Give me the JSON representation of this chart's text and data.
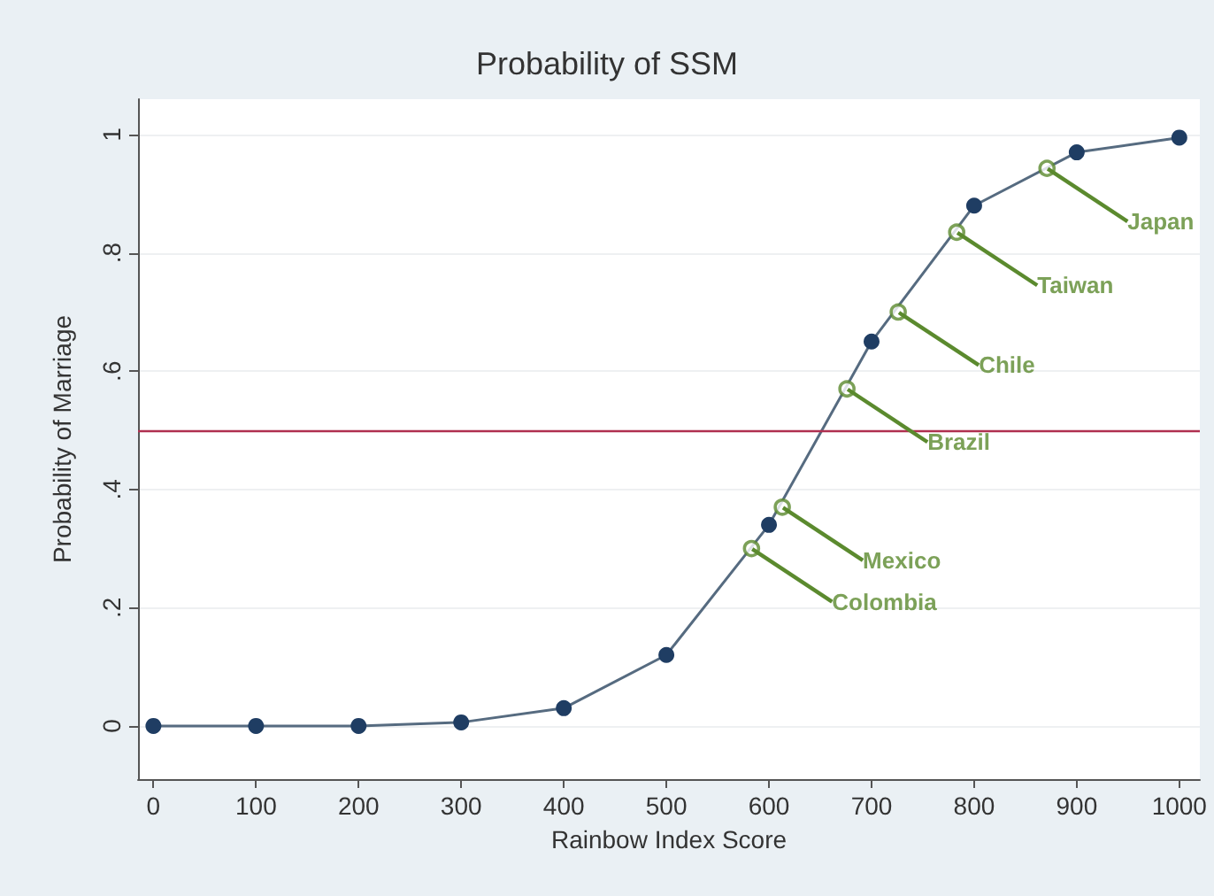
{
  "chart_data": {
    "type": "line",
    "title": "Probability of SSM",
    "xlabel": "Rainbow Index Score",
    "ylabel": "Probability of Marriage",
    "x": [
      0,
      100,
      200,
      300,
      400,
      500,
      600,
      700,
      800,
      900,
      1000
    ],
    "series": [
      {
        "color": "#1f3d63",
        "values": [
          0,
          0,
          0,
          0.006,
          0.03,
          0.12,
          0.34,
          0.65,
          0.88,
          0.97,
          0.995
        ]
      },
      {
        "type": "scatter",
        "color": "#5b8a2e",
        "x": [
          583,
          613,
          676,
          726,
          783,
          871
        ],
        "values": [
          0.3,
          0.37,
          0.57,
          0.7,
          0.835,
          0.943
        ]
      }
    ],
    "xlim": [
      -15,
      1020
    ],
    "ylim": [
      -0.09,
      1.06
    ],
    "xticks": [
      0,
      100,
      200,
      300,
      400,
      500,
      600,
      700,
      800,
      900,
      1000
    ],
    "yticks": [
      {
        "value": 0,
        "label": "0"
      },
      {
        "value": 0.2,
        "label": ".2"
      },
      {
        "value": 0.4,
        "label": ".4"
      },
      {
        "value": 0.6,
        "label": ".6"
      },
      {
        "value": 0.8,
        "label": ".8"
      },
      {
        "value": 1,
        "label": "1"
      }
    ],
    "ref_lines": [
      {
        "axis": "y",
        "value": 0.5,
        "color": "#b03050"
      }
    ],
    "annotations": [
      {
        "text": "Colombia",
        "x": 583,
        "y": 0.3
      },
      {
        "text": "Mexico",
        "x": 613,
        "y": 0.37
      },
      {
        "text": "Brazil",
        "x": 676,
        "y": 0.57
      },
      {
        "text": "Chile",
        "x": 726,
        "y": 0.7
      },
      {
        "text": "Taiwan",
        "x": 783,
        "y": 0.835
      },
      {
        "text": "Japan",
        "x": 871,
        "y": 0.943
      }
    ],
    "grid": "y",
    "marker": "circle",
    "line_style": "solid"
  }
}
